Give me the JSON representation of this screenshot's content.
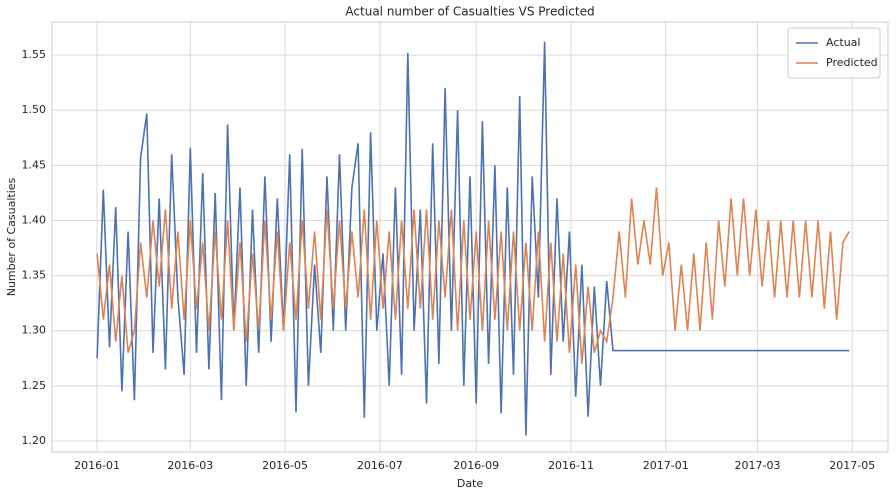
{
  "chart_data": {
    "type": "line",
    "title": "Actual number of Casualties VS Predicted",
    "xlabel": "Date",
    "ylabel": "Number of Casualties",
    "x": [
      0,
      4,
      8,
      12,
      16,
      20,
      24,
      28,
      32,
      36,
      40,
      44,
      48,
      52,
      56,
      60,
      64,
      68,
      72,
      76,
      80,
      84,
      88,
      92,
      96,
      100,
      104,
      108,
      112,
      116,
      120,
      124,
      128,
      132,
      136,
      140,
      144,
      148,
      152,
      156,
      160,
      164,
      168,
      172,
      176,
      180,
      184,
      188,
      192,
      196,
      200,
      204,
      208,
      212,
      216,
      220,
      224,
      228,
      232,
      236,
      240,
      244,
      248,
      252,
      256,
      260,
      264,
      268,
      272,
      276,
      280,
      284,
      288,
      292,
      296,
      300,
      304,
      308,
      312,
      316,
      320,
      324,
      328,
      332,
      336,
      340,
      344,
      348,
      352,
      356,
      360,
      364,
      368,
      372,
      376,
      380,
      384,
      388,
      392,
      396,
      400,
      404,
      408,
      412,
      416,
      420,
      424,
      428,
      432,
      436,
      440,
      444,
      448,
      452,
      456,
      460,
      464,
      468,
      472,
      476,
      480,
      484
    ],
    "series": [
      {
        "name": "Actual",
        "color": "#4c72b0",
        "values": [
          1.275,
          1.428,
          1.285,
          1.412,
          1.245,
          1.39,
          1.237,
          1.457,
          1.497,
          1.28,
          1.42,
          1.265,
          1.46,
          1.33,
          1.26,
          1.466,
          1.28,
          1.443,
          1.265,
          1.425,
          1.237,
          1.487,
          1.3,
          1.43,
          1.25,
          1.41,
          1.28,
          1.44,
          1.29,
          1.42,
          1.3,
          1.46,
          1.226,
          1.465,
          1.25,
          1.36,
          1.28,
          1.44,
          1.3,
          1.46,
          1.3,
          1.43,
          1.47,
          1.221,
          1.48,
          1.3,
          1.37,
          1.25,
          1.43,
          1.26,
          1.552,
          1.3,
          1.41,
          1.234,
          1.47,
          1.27,
          1.52,
          1.3,
          1.5,
          1.25,
          1.44,
          1.234,
          1.49,
          1.27,
          1.45,
          1.225,
          1.43,
          1.26,
          1.513,
          1.205,
          1.44,
          1.33,
          1.562,
          1.26,
          1.42,
          1.29,
          1.39,
          1.24,
          1.36,
          1.222,
          1.34,
          1.25,
          1.345,
          1.282,
          1.282,
          1.282,
          1.282,
          1.282,
          1.282,
          1.282,
          1.282,
          1.282,
          1.282,
          1.282,
          1.282,
          1.282,
          1.282,
          1.282,
          1.282,
          1.282,
          1.282,
          1.282,
          1.282,
          1.282,
          1.282,
          1.282,
          1.282,
          1.282,
          1.282,
          1.282,
          1.282,
          1.282,
          1.282,
          1.282,
          1.282,
          1.282,
          1.282,
          1.282,
          1.282,
          1.282,
          1.282,
          1.282
        ]
      },
      {
        "name": "Predicted",
        "color": "#dd8452",
        "values": [
          1.37,
          1.31,
          1.36,
          1.29,
          1.35,
          1.28,
          1.3,
          1.38,
          1.33,
          1.4,
          1.34,
          1.41,
          1.32,
          1.39,
          1.31,
          1.4,
          1.32,
          1.38,
          1.3,
          1.39,
          1.31,
          1.4,
          1.3,
          1.38,
          1.29,
          1.37,
          1.3,
          1.4,
          1.31,
          1.39,
          1.3,
          1.38,
          1.31,
          1.4,
          1.32,
          1.39,
          1.31,
          1.41,
          1.32,
          1.4,
          1.32,
          1.39,
          1.33,
          1.41,
          1.31,
          1.4,
          1.32,
          1.39,
          1.31,
          1.4,
          1.32,
          1.41,
          1.32,
          1.41,
          1.31,
          1.4,
          1.33,
          1.41,
          1.3,
          1.4,
          1.31,
          1.39,
          1.3,
          1.4,
          1.31,
          1.39,
          1.3,
          1.39,
          1.3,
          1.38,
          1.3,
          1.39,
          1.29,
          1.38,
          1.29,
          1.37,
          1.28,
          1.36,
          1.27,
          1.34,
          1.28,
          1.3,
          1.29,
          1.33,
          1.39,
          1.33,
          1.42,
          1.36,
          1.4,
          1.36,
          1.43,
          1.35,
          1.38,
          1.3,
          1.36,
          1.3,
          1.37,
          1.3,
          1.38,
          1.31,
          1.4,
          1.34,
          1.42,
          1.35,
          1.42,
          1.35,
          1.41,
          1.34,
          1.4,
          1.33,
          1.4,
          1.33,
          1.4,
          1.33,
          1.4,
          1.33,
          1.4,
          1.32,
          1.39,
          1.31,
          1.38,
          1.39
        ]
      }
    ],
    "xlim": [
      -29,
      509
    ],
    "xticks": [
      {
        "value": 0,
        "label": "2016-01"
      },
      {
        "value": 60,
        "label": "2016-03"
      },
      {
        "value": 121,
        "label": "2016-05"
      },
      {
        "value": 182,
        "label": "2016-07"
      },
      {
        "value": 244,
        "label": "2016-09"
      },
      {
        "value": 305,
        "label": "2016-11"
      },
      {
        "value": 366,
        "label": "2017-01"
      },
      {
        "value": 425,
        "label": "2017-03"
      },
      {
        "value": 486,
        "label": "2017-05"
      }
    ],
    "ylim": [
      1.19,
      1.58
    ],
    "yticks": [
      {
        "value": 1.2,
        "label": "1.20"
      },
      1.25,
      {
        "value": 1.3,
        "label": "1.30"
      },
      1.35,
      {
        "value": 1.4,
        "label": "1.40"
      },
      1.45,
      {
        "value": 1.5,
        "label": "1.50"
      },
      1.55
    ],
    "grid": true,
    "legend": "upper right"
  }
}
